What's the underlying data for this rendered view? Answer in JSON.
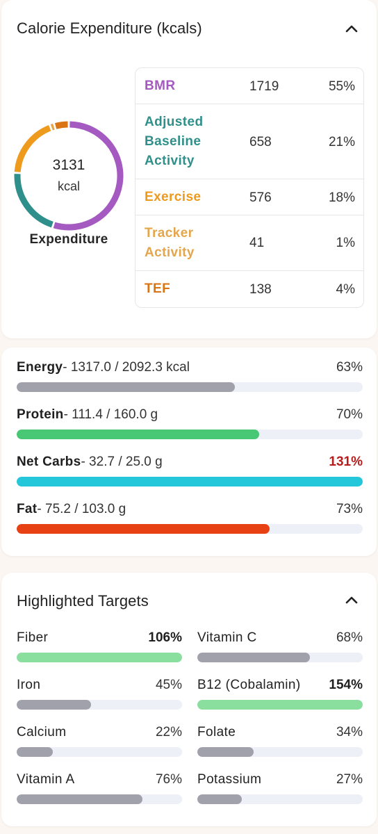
{
  "expenditure": {
    "title": "Calorie Expenditure (kcals)",
    "total_value": "3131",
    "total_unit": "kcal",
    "caption": "Expenditure",
    "rows": [
      {
        "name": "BMR",
        "value": "1719",
        "pct": "55%",
        "pct_num": 55,
        "color": "#a45ac0"
      },
      {
        "name": "Adjusted Baseline Activity",
        "value": "658",
        "pct": "21%",
        "pct_num": 21,
        "color": "#2f8f8a"
      },
      {
        "name": "Exercise",
        "value": "576",
        "pct": "18%",
        "pct_num": 18,
        "color": "#ee9a1d"
      },
      {
        "name": "Tracker Activity",
        "value": "41",
        "pct": "1%",
        "pct_num": 1,
        "color": "#e5a54a"
      },
      {
        "name": "TEF",
        "value": "138",
        "pct": "4%",
        "pct_num": 4,
        "color": "#d97514"
      }
    ]
  },
  "macros": [
    {
      "name": "Energy",
      "amount": "- 1317.0 / 2092.3 kcal",
      "pct": "63%",
      "progress": 0.63,
      "color": "#a0a1ab",
      "over": false
    },
    {
      "name": "Protein",
      "amount": "- 111.4 / 160.0 g",
      "pct": "70%",
      "progress": 0.7,
      "color": "#48c774",
      "over": false
    },
    {
      "name": "Net Carbs",
      "amount": "- 32.7 / 25.0 g",
      "pct": "131%",
      "progress": 1.0,
      "color": "#24c6da",
      "over": true
    },
    {
      "name": "Fat",
      "amount": "- 75.2 / 103.0 g",
      "pct": "73%",
      "progress": 0.73,
      "color": "#e84114",
      "over": false
    }
  ],
  "targets": {
    "title": "Highlighted Targets",
    "items": [
      {
        "name": "Fiber",
        "pct": "106%",
        "progress": 1.0,
        "met": true
      },
      {
        "name": "Vitamin C",
        "pct": "68%",
        "progress": 0.68,
        "met": false
      },
      {
        "name": "Iron",
        "pct": "45%",
        "progress": 0.45,
        "met": false
      },
      {
        "name": "B12 (Cobalamin)",
        "pct": "154%",
        "progress": 1.0,
        "met": true
      },
      {
        "name": "Calcium",
        "pct": "22%",
        "progress": 0.22,
        "met": false
      },
      {
        "name": "Folate",
        "pct": "34%",
        "progress": 0.34,
        "met": false
      },
      {
        "name": "Vitamin A",
        "pct": "76%",
        "progress": 0.76,
        "met": false
      },
      {
        "name": "Potassium",
        "pct": "27%",
        "progress": 0.27,
        "met": false
      }
    ],
    "met_color": "#8adf9f",
    "unmet_color": "#a0a1ab"
  }
}
